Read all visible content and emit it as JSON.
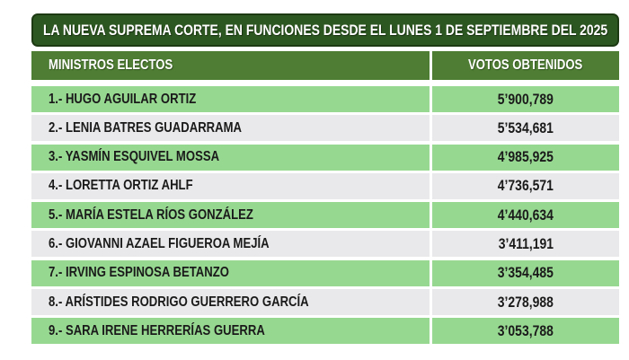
{
  "title": "LA NUEVA SUPREMA CORTE, EN FUNCIONES DESDE EL LUNES 1 DE SEPTIEMBRE DEL 2025",
  "colors": {
    "title_bg": "#2d5721",
    "title_border": "#1d3a13",
    "header_bg": "#4e7d33",
    "header_text": "#ffffff",
    "row_green": "#97d891",
    "row_gray": "#e9e9eb",
    "row_text": "#1a1a1a"
  },
  "table": {
    "columns": [
      "MINISTROS ELECTOS",
      "VOTOS OBTENIDOS"
    ],
    "rows": [
      {
        "label": "1.- HUGO AGUILAR ORTIZ",
        "votes": "5’900,789"
      },
      {
        "label": "2.- LENIA BATRES GUADARRAMA",
        "votes": "5’534,681"
      },
      {
        "label": "3.- YASMÍN ESQUIVEL MOSSA",
        "votes": "4’985,925"
      },
      {
        "label": "4.- LORETTA ORTIZ AHLF",
        "votes": "4’736,571"
      },
      {
        "label": "5.- MARÍA ESTELA RÍOS GONZÁLEZ",
        "votes": "4’440,634"
      },
      {
        "label": "6.- GIOVANNI AZAEL FIGUEROA MEJÍA",
        "votes": "3’411,191"
      },
      {
        "label": "7.- IRVING ESPINOSA BETANZO",
        "votes": "3’354,485"
      },
      {
        "label": "8.- ARÍSTIDES RODRIGO GUERRERO GARCÍA",
        "votes": "3’278,988"
      },
      {
        "label": "9.- SARA IRENE HERRERÍAS GUERRA",
        "votes": "3’053,788"
      }
    ]
  },
  "chart_data": {
    "type": "table",
    "title": "LA NUEVA SUPREMA CORTE, EN FUNCIONES DESDE EL LUNES 1 DE SEPTIEMBRE DEL 2025",
    "columns": [
      "MINISTROS ELECTOS",
      "VOTOS OBTENIDOS"
    ],
    "categories": [
      "HUGO AGUILAR ORTIZ",
      "LENIA BATRES GUADARRAMA",
      "YASMÍN ESQUIVEL MOSSA",
      "LORETTA ORTIZ AHLF",
      "MARÍA ESTELA RÍOS GONZÁLEZ",
      "GIOVANNI AZAEL FIGUEROA MEJÍA",
      "IRVING ESPINOSA BETANZO",
      "ARÍSTIDES RODRIGO GUERRERO GARCÍA",
      "SARA IRENE HERRERÍAS GUERRA"
    ],
    "values": [
      5900789,
      5534681,
      4985925,
      4736571,
      4440634,
      3411191,
      3354485,
      3278988,
      3053788
    ]
  }
}
